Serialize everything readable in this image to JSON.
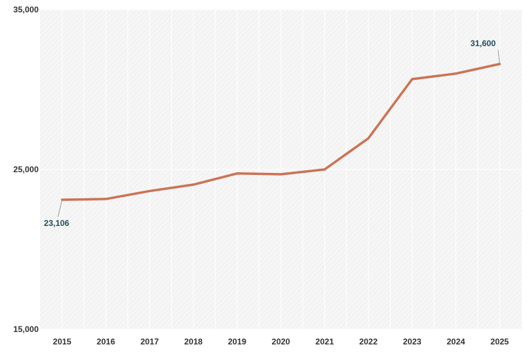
{
  "colors": {
    "line": "#cc7355",
    "plot_background": "#f6f6f6",
    "hatch": "#e6e6e6",
    "grid": "#ffffff",
    "axis_text": "#333333",
    "data_label_text": "#1f4e5f",
    "leader": "#999999"
  },
  "chart_data": {
    "type": "line",
    "title": "",
    "xlabel": "",
    "ylabel": "",
    "x": [
      "2015",
      "2016",
      "2017",
      "2018",
      "2019",
      "2020",
      "2021",
      "2022",
      "2023",
      "2024",
      "2025"
    ],
    "series": [
      {
        "values": [
          23106,
          23150,
          23650,
          24050,
          24750,
          24700,
          25000,
          26950,
          30650,
          31000,
          31600
        ]
      }
    ],
    "ylim": [
      15000,
      35000
    ],
    "yticks": [
      15000,
      25000,
      35000
    ],
    "ytick_labels": [
      "15,000",
      "25,000",
      "35,000"
    ],
    "grid": true,
    "legend": "none",
    "annotations": [
      {
        "index": 0,
        "text": "23,106"
      },
      {
        "index": 10,
        "text": "31,600"
      }
    ]
  }
}
